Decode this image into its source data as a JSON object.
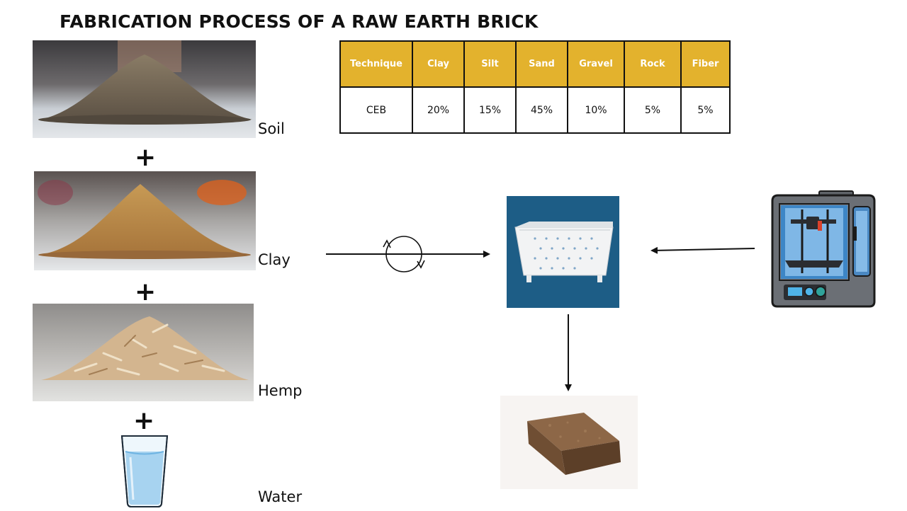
{
  "title": "FABRICATION PROCESS OF A RAW EARTH BRICK",
  "ingredients": [
    {
      "label": "Soil"
    },
    {
      "label": "Clay"
    },
    {
      "label": "Hemp"
    },
    {
      "label": "Water"
    }
  ],
  "plus_symbol": "+",
  "table": {
    "headers": [
      "Technique",
      "Clay",
      "Silt",
      "Sand",
      "Gravel",
      "Rock",
      "Fiber"
    ],
    "row": [
      "CEB",
      "20%",
      "15%",
      "45%",
      "10%",
      "5%",
      "5%"
    ]
  },
  "colors": {
    "header_bg": "#e3b22d",
    "mold_bg": "#1d5d86"
  },
  "icons": {
    "mixing": "circular-arrows-icon",
    "printer": "3d-printer-icon",
    "mold": "brick-mold",
    "brick": "earth-brick"
  }
}
